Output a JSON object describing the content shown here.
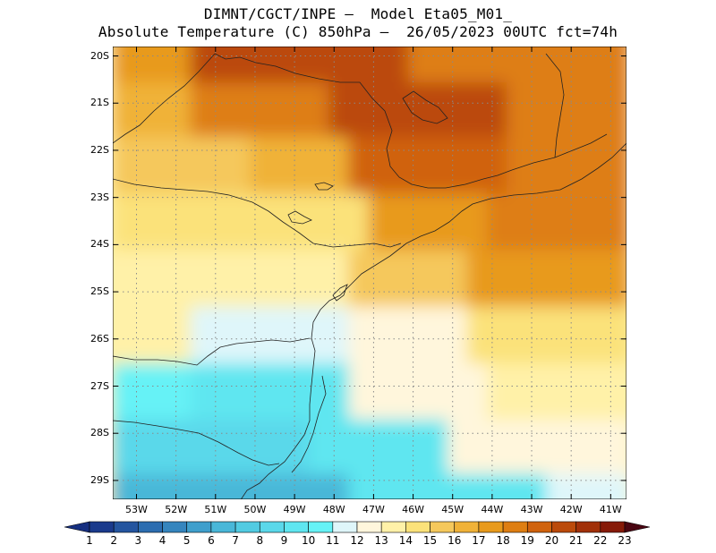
{
  "header": {
    "line1": "DIMNT/CGCT/INPE –  Model Eta05_M01_",
    "line2": "Absolute Temperature (C) 850hPa –  26/05/2023 00UTC fct=74h"
  },
  "axes": {
    "lat_labels": [
      "20S",
      "21S",
      "22S",
      "23S",
      "24S",
      "25S",
      "26S",
      "27S",
      "28S",
      "29S"
    ],
    "lon_labels": [
      "53W",
      "52W",
      "51W",
      "50W",
      "49W",
      "48W",
      "47W",
      "46W",
      "45W",
      "44W",
      "43W",
      "42W",
      "41W"
    ]
  },
  "colorbar": {
    "labels": [
      "1",
      "2",
      "3",
      "4",
      "5",
      "6",
      "7",
      "8",
      "9",
      "10",
      "11",
      "12",
      "13",
      "14",
      "15",
      "16",
      "17",
      "18",
      "19",
      "20",
      "21",
      "22",
      "23"
    ],
    "colors": [
      "#1a3a8c",
      "#24559f",
      "#2c6db0",
      "#3585be",
      "#3f9fcc",
      "#49b7d8",
      "#52cbe2",
      "#5ad8ea",
      "#5fe6f0",
      "#66f2f6",
      "#dff6fa",
      "#fff6dc",
      "#fff1a8",
      "#fbe27a",
      "#f5c85c",
      "#f0b238",
      "#e89a1c",
      "#de7e12",
      "#d0620d",
      "#bb4a0a",
      "#a13008",
      "#861a08",
      "#650708"
    ],
    "under_color": "#162f80",
    "over_color": "#4a0612"
  },
  "field": {
    "variable": "Absolute Temperature (C)",
    "level": "850hPa",
    "bands": [
      {
        "lat": -29.3,
        "lon_start": -53.5,
        "lon_end": -47.5,
        "value": 6
      },
      {
        "lat": -29.3,
        "lon_start": -47.5,
        "lon_end": -42.5,
        "value": 9
      },
      {
        "lat": -29.3,
        "lon_start": -42.5,
        "lon_end": -40.6,
        "value": 11
      },
      {
        "lat": -28.2,
        "lon_start": -53.5,
        "lon_end": -48.5,
        "value": 8
      },
      {
        "lat": -28.2,
        "lon_start": -48.5,
        "lon_end": -45.0,
        "value": 9
      },
      {
        "lat": -28.2,
        "lon_start": -45.0,
        "lon_end": -40.6,
        "value": 12
      },
      {
        "lat": -27.0,
        "lon_start": -53.5,
        "lon_end": -51.5,
        "value": 10
      },
      {
        "lat": -27.0,
        "lon_start": -51.5,
        "lon_end": -47.5,
        "value": 9
      },
      {
        "lat": -27.0,
        "lon_start": -47.5,
        "lon_end": -44.0,
        "value": 12
      },
      {
        "lat": -27.0,
        "lon_start": -44.0,
        "lon_end": -40.6,
        "value": 13
      },
      {
        "lat": -25.8,
        "lon_start": -53.5,
        "lon_end": -51.5,
        "value": 13
      },
      {
        "lat": -25.8,
        "lon_start": -51.5,
        "lon_end": -47.5,
        "value": 11
      },
      {
        "lat": -25.8,
        "lon_start": -47.5,
        "lon_end": -44.5,
        "value": 12
      },
      {
        "lat": -25.8,
        "lon_start": -44.5,
        "lon_end": -40.6,
        "value": 14
      },
      {
        "lat": -24.6,
        "lon_start": -53.5,
        "lon_end": -47.5,
        "value": 13
      },
      {
        "lat": -24.6,
        "lon_start": -47.5,
        "lon_end": -44.5,
        "value": 15
      },
      {
        "lat": -24.6,
        "lon_start": -44.5,
        "lon_end": -40.6,
        "value": 17
      },
      {
        "lat": -23.4,
        "lon_start": -53.5,
        "lon_end": -50.0,
        "value": 14
      },
      {
        "lat": -23.4,
        "lon_start": -50.0,
        "lon_end": -47.0,
        "value": 14
      },
      {
        "lat": -23.4,
        "lon_start": -47.0,
        "lon_end": -44.0,
        "value": 17
      },
      {
        "lat": -23.4,
        "lon_start": -44.0,
        "lon_end": -40.6,
        "value": 18
      },
      {
        "lat": -22.2,
        "lon_start": -53.5,
        "lon_end": -50.0,
        "value": 15
      },
      {
        "lat": -22.2,
        "lon_start": -50.0,
        "lon_end": -47.5,
        "value": 16
      },
      {
        "lat": -22.2,
        "lon_start": -47.5,
        "lon_end": -43.5,
        "value": 19
      },
      {
        "lat": -22.2,
        "lon_start": -43.5,
        "lon_end": -40.6,
        "value": 18
      },
      {
        "lat": -21.0,
        "lon_start": -53.5,
        "lon_end": -51.5,
        "value": 16
      },
      {
        "lat": -21.0,
        "lon_start": -51.5,
        "lon_end": -48.0,
        "value": 18
      },
      {
        "lat": -21.0,
        "lon_start": -48.0,
        "lon_end": -43.5,
        "value": 20
      },
      {
        "lat": -21.0,
        "lon_start": -43.5,
        "lon_end": -40.6,
        "value": 18
      },
      {
        "lat": -19.9,
        "lon_start": -53.5,
        "lon_end": -51.5,
        "value": 17
      },
      {
        "lat": -19.9,
        "lon_start": -51.5,
        "lon_end": -46.0,
        "value": 20
      },
      {
        "lat": -19.9,
        "lon_start": -46.0,
        "lon_end": -40.6,
        "value": 18
      }
    ]
  }
}
